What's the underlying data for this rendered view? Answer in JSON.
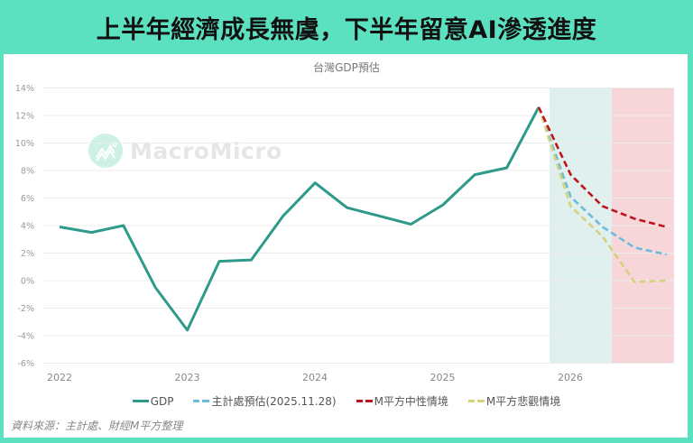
{
  "header": {
    "title": "上半年經濟成長無虞，下半年留意AI滲透進度"
  },
  "watermark": {
    "text": "MacroMicro",
    "icon": "macromicro-logo-icon"
  },
  "source": {
    "text": "資料來源：主計處、財經M平方整理"
  },
  "chart_data": {
    "type": "line",
    "title": "台灣GDP預估",
    "xlabel": "",
    "ylabel": "",
    "ylim": [
      -6,
      14
    ],
    "yticks": [
      "14%",
      "12%",
      "10%",
      "8%",
      "6%",
      "4%",
      "2%",
      "0%",
      "-2%",
      "-4%",
      "-6%"
    ],
    "xticks": [
      "2022",
      "2023",
      "2024",
      "2025",
      "2026"
    ],
    "grid": true,
    "legend_position": "bottom",
    "x": [
      "2022Q1",
      "2022Q2",
      "2022Q3",
      "2022Q4",
      "2023Q1",
      "2023Q2",
      "2023Q3",
      "2023Q4",
      "2024Q1",
      "2024Q2",
      "2024Q3",
      "2024Q4",
      "2025Q1",
      "2025Q2",
      "2025Q3",
      "2025Q4",
      "2026Q1",
      "2026Q2",
      "2026Q3",
      "2026Q4"
    ],
    "series": [
      {
        "name": "GDP",
        "color": "#2e9a8a",
        "style": "solid",
        "values": [
          3.9,
          3.5,
          4.0,
          -0.5,
          -3.6,
          1.4,
          1.5,
          4.7,
          7.1,
          5.3,
          4.7,
          4.1,
          5.5,
          7.7,
          8.2,
          12.6,
          null,
          null,
          null,
          null
        ]
      },
      {
        "name": "主計處預估(2025.11.28)",
        "color": "#6cbcd8",
        "style": "dashed",
        "values": [
          null,
          null,
          null,
          null,
          null,
          null,
          null,
          null,
          null,
          null,
          null,
          null,
          null,
          null,
          null,
          12.6,
          6.1,
          3.9,
          2.4,
          1.9
        ]
      },
      {
        "name": "M平方中性情境",
        "color": "#c0141c",
        "style": "dashed",
        "values": [
          null,
          null,
          null,
          null,
          null,
          null,
          null,
          null,
          null,
          null,
          null,
          null,
          null,
          null,
          null,
          12.6,
          7.7,
          5.4,
          4.5,
          3.9
        ]
      },
      {
        "name": "M平方悲觀情境",
        "color": "#d4d27a",
        "style": "dashed",
        "values": [
          null,
          null,
          null,
          null,
          null,
          null,
          null,
          null,
          null,
          null,
          null,
          null,
          null,
          null,
          null,
          12.6,
          5.4,
          3.2,
          -0.1,
          0.0
        ]
      }
    ],
    "shaded_regions": [
      {
        "from": "2026Q1",
        "to": "2026Q2",
        "color": "#dff0ee"
      },
      {
        "from": "2026Q3",
        "to": "2026Q4",
        "color": "#f7d6da"
      }
    ]
  },
  "legend": [
    {
      "label": "GDP",
      "color": "#2e9a8a",
      "dashed": false
    },
    {
      "label": "主計處預估(2025.11.28)",
      "color": "#6cbcd8",
      "dashed": true
    },
    {
      "label": "M平方中性情境",
      "color": "#c0141c",
      "dashed": true
    },
    {
      "label": "M平方悲觀情境",
      "color": "#d4d27a",
      "dashed": true
    }
  ]
}
